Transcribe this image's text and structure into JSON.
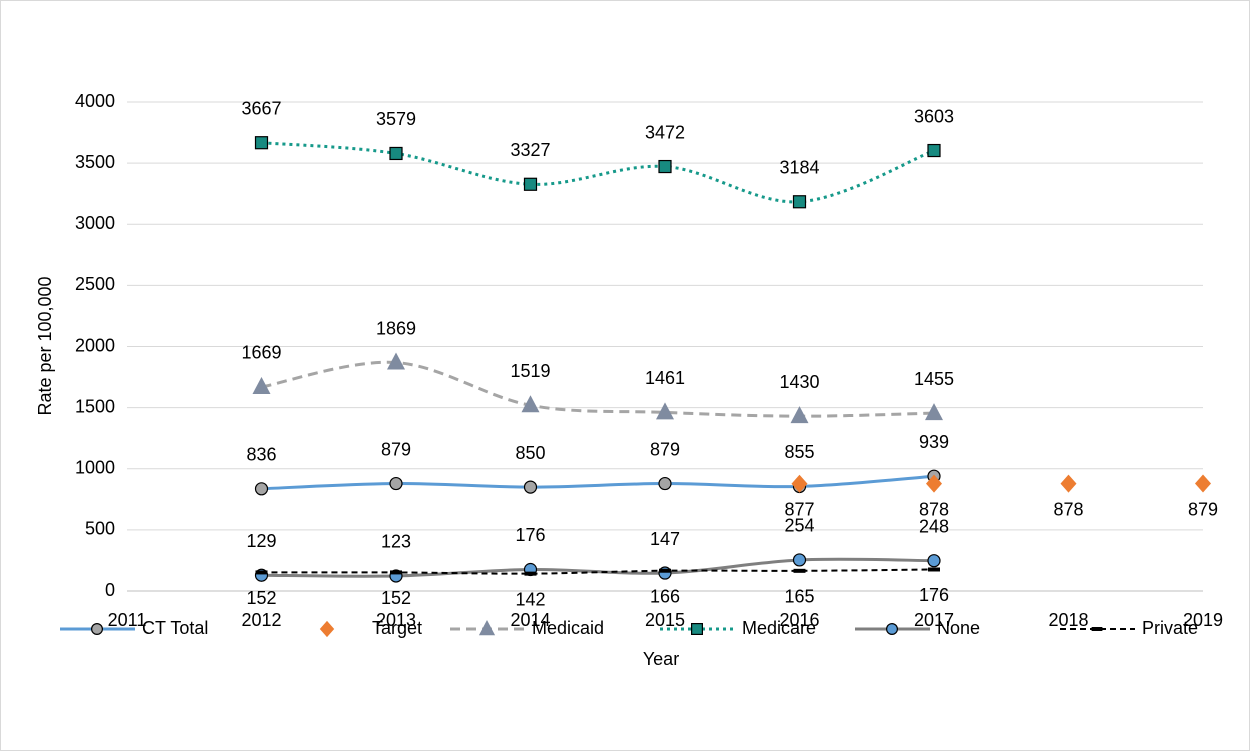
{
  "chart_data": {
    "type": "line",
    "xlabel": "Year",
    "ylabel": "Rate per 100,000",
    "x": [
      2012,
      2013,
      2014,
      2015,
      2016,
      2017,
      2018,
      2019
    ],
    "xlim": [
      2011,
      2019
    ],
    "xticks": [
      2011,
      2012,
      2013,
      2014,
      2015,
      2016,
      2017,
      2018,
      2019
    ],
    "ylim": [
      0,
      4000
    ],
    "yticks": [
      0,
      500,
      1000,
      1500,
      2000,
      2500,
      3000,
      3500,
      4000
    ],
    "grid": true,
    "legend": "bottom",
    "series": [
      {
        "name": "CT Total",
        "color": "#5b9bd5",
        "line": "solid",
        "marker": "circle",
        "marker_color": "#a5a5a5",
        "label_position": "above",
        "values": [
          836,
          879,
          850,
          879,
          855,
          939,
          null,
          null
        ]
      },
      {
        "name": "Target",
        "color": "#ed7d31",
        "line": "none",
        "marker": "diamond",
        "marker_color": "#ed7d31",
        "label_position": "below",
        "values": [
          null,
          null,
          null,
          null,
          877,
          878,
          878,
          879
        ]
      },
      {
        "name": "Medicaid",
        "color": "#a5a5a5",
        "line": "dashed",
        "marker": "triangle",
        "marker_color": "#7f8ba0",
        "label_position": "above",
        "values": [
          1669,
          1869,
          1519,
          1461,
          1430,
          1455,
          null,
          null
        ]
      },
      {
        "name": "Medicare",
        "color": "#16998a",
        "line": "dotted",
        "marker": "square",
        "marker_color": "#178a80",
        "label_position": "above",
        "values": [
          3667,
          3579,
          3327,
          3472,
          3184,
          3603,
          null,
          null
        ]
      },
      {
        "name": "None",
        "color": "#7f7f7f",
        "line": "solid",
        "marker": "circle",
        "marker_color": "#5b9bd5",
        "label_position": "above",
        "values": [
          129,
          123,
          176,
          147,
          254,
          248,
          null,
          null
        ]
      },
      {
        "name": "Private",
        "color": "#000000",
        "line": "dashed-thin",
        "marker": "dash",
        "marker_color": "#000000",
        "label_position": "below",
        "values": [
          152,
          152,
          142,
          166,
          165,
          176,
          null,
          null
        ]
      }
    ]
  }
}
